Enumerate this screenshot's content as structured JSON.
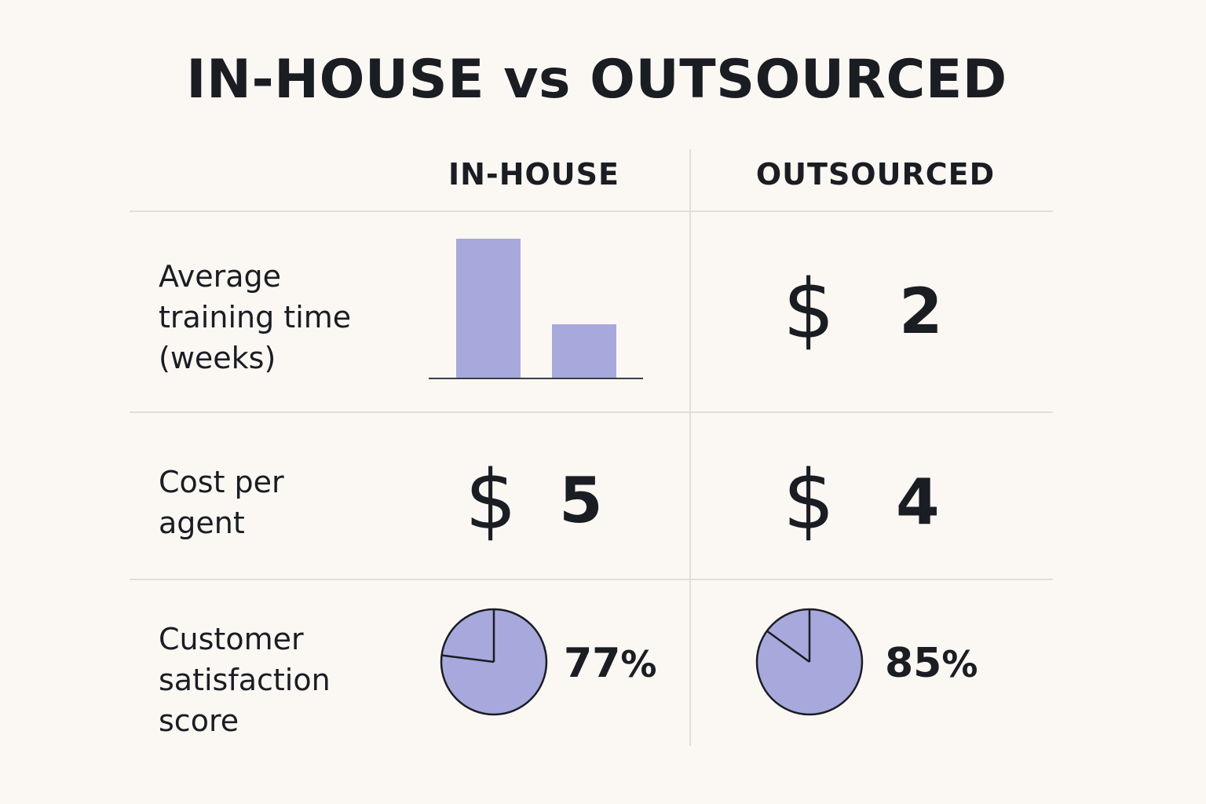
{
  "title": "IN-HOUSE vs OUTSOURCED",
  "columns": [
    "IN-HOUSE",
    "OUTSOURCED"
  ],
  "rows": [
    {
      "label_lines": [
        "Average",
        "training time",
        "(weeks)"
      ]
    },
    {
      "label_lines": [
        "Cost per",
        "agent"
      ]
    },
    {
      "label_lines": [
        "Customer",
        "satisfaction",
        "score"
      ]
    }
  ],
  "cells": {
    "training_outsourced": {
      "symbol": "$",
      "value": "2"
    },
    "cost_inhouse": {
      "symbol": "$",
      "value": "5"
    },
    "cost_outsourced": {
      "symbol": "$",
      "value": "4"
    },
    "sat_inhouse": {
      "value": "77",
      "unit": "%"
    },
    "sat_outsourced": {
      "value": "85",
      "unit": "%"
    }
  },
  "colors": {
    "fill": "#a7a9dc",
    "stroke": "#1a1d22",
    "text": "#1a1d22",
    "grid": "#e2ddd8",
    "background": "#fbf8f4"
  },
  "chart_data": [
    {
      "type": "bar",
      "categories": [
        "",
        ""
      ],
      "values": [
        8,
        3.1
      ],
      "ylim": [
        0,
        8
      ],
      "grid": false
    },
    {
      "type": "pie",
      "labels": [
        "77%"
      ],
      "values": [
        77
      ],
      "total": 100
    },
    {
      "type": "pie",
      "labels": [
        "85%"
      ],
      "values": [
        85
      ],
      "total": 100
    }
  ]
}
